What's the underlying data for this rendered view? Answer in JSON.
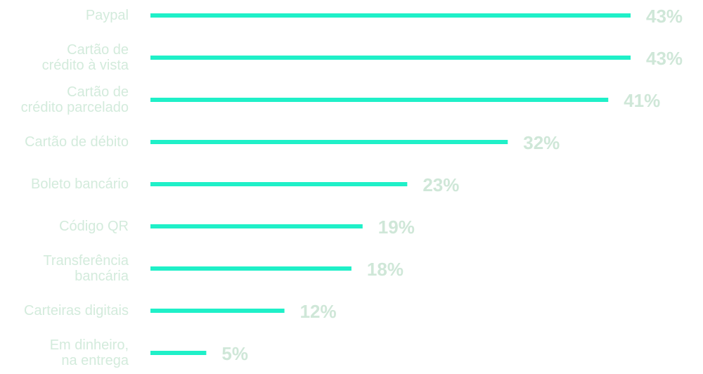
{
  "chart_data": {
    "type": "bar",
    "orientation": "horizontal",
    "categories": [
      "Paypal",
      "Cartão de\ncrédito à vista",
      "Cartão de\ncrédito parcelado",
      "Cartão de débito",
      "Boleto bancário",
      "Código QR",
      "Transferência\nbancária",
      "Carteiras digitais",
      "Em dinheiro,\nna entrega"
    ],
    "values": [
      43,
      43,
      41,
      32,
      23,
      19,
      18,
      12,
      5
    ],
    "value_labels": [
      "43%",
      "43%",
      "41%",
      "32%",
      "23%",
      "19%",
      "18%",
      "12%",
      "5%"
    ],
    "color": "#1ff0c8"
  }
}
